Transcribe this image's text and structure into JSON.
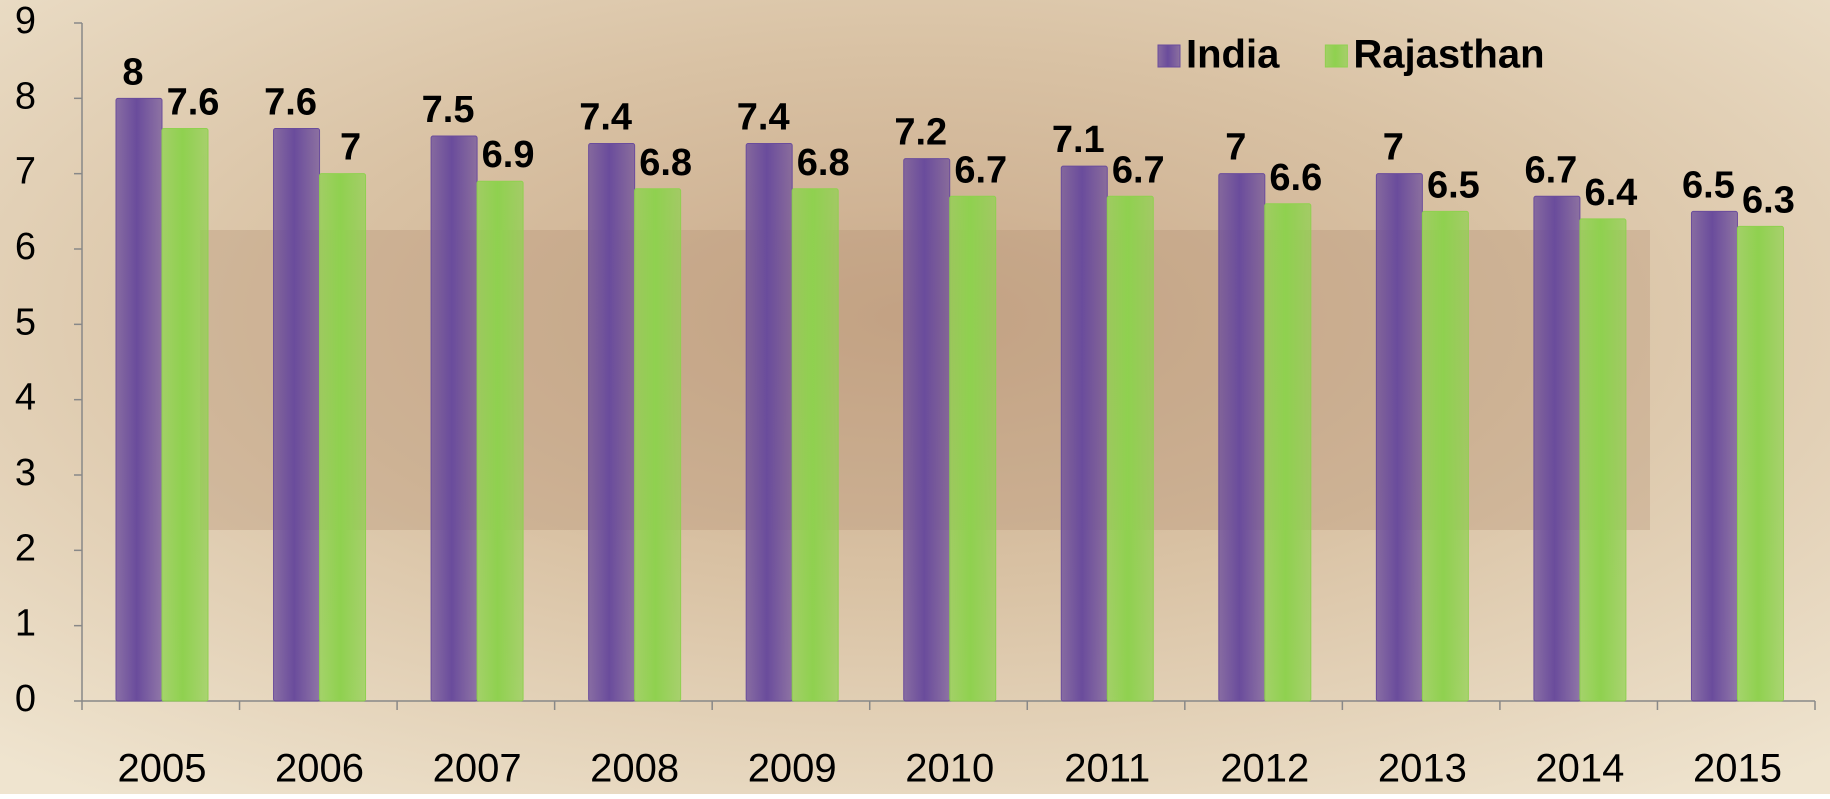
{
  "chart_data": {
    "type": "bar",
    "categories": [
      "2005",
      "2006",
      "2007",
      "2008",
      "2009",
      "2010",
      "2011",
      "2012",
      "2013",
      "2014",
      "2015"
    ],
    "series": [
      {
        "name": "India",
        "color": "#6a4c9c",
        "values": [
          8,
          7.6,
          7.5,
          7.4,
          7.4,
          7.2,
          7.1,
          7,
          7,
          6.7,
          6.5
        ]
      },
      {
        "name": "Rajasthan",
        "color": "#8fd14f",
        "values": [
          7.6,
          7,
          6.9,
          6.8,
          6.8,
          6.7,
          6.7,
          6.6,
          6.5,
          6.4,
          6.3
        ]
      }
    ],
    "ylim": [
      0,
      9
    ],
    "yticks": [
      0,
      1,
      2,
      3,
      4,
      5,
      6,
      7,
      8,
      9
    ],
    "legend": "top-right"
  }
}
